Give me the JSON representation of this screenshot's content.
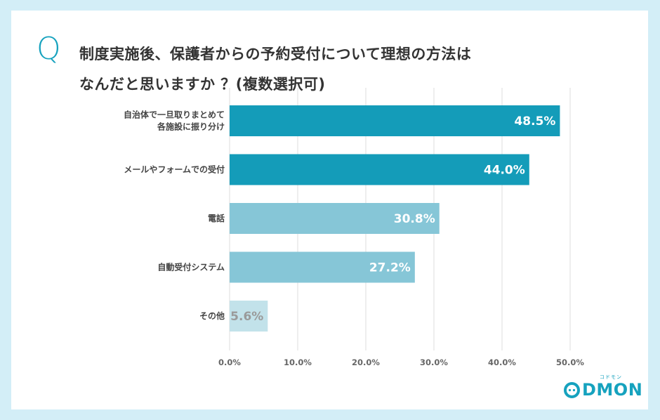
{
  "question": {
    "mark": "Q",
    "line1": "制度実施後、保護者からの予約受付について理想の方法は",
    "line2": "なんだと思いますか ？(複数選択可)"
  },
  "logo": {
    "text": "DMON",
    "sub": "コドモン"
  },
  "colors": {
    "background": "#d3eef7",
    "card": "#ffffff",
    "accent": "#16a2be",
    "bar_dark": "#149cb9",
    "bar_medium": "#86c6d7",
    "bar_light": "#c2e2ea",
    "grid": "#dddddd"
  },
  "chart_data": {
    "type": "bar",
    "orientation": "horizontal",
    "categories": [
      [
        "自治体で一旦取りまとめて",
        "各施設に振り分け"
      ],
      [
        "メールやフォームでの受付"
      ],
      [
        "電話"
      ],
      [
        "自動受付システム"
      ],
      [
        "その他"
      ]
    ],
    "values": [
      48.5,
      44.0,
      30.8,
      27.2,
      5.6
    ],
    "value_labels": [
      "48.5%",
      "44.0%",
      "30.8%",
      "27.2%",
      "5.6%"
    ],
    "bar_colors": [
      "#149cb9",
      "#149cb9",
      "#86c6d7",
      "#86c6d7",
      "#c2e2ea"
    ],
    "label_colors": [
      "#ffffff",
      "#ffffff",
      "#ffffff",
      "#ffffff",
      "#9a9a9a"
    ],
    "xlim": [
      0,
      50
    ],
    "xticks": [
      0,
      10,
      20,
      30,
      40,
      50
    ],
    "xtick_labels": [
      "0.0%",
      "10.0%",
      "20.0%",
      "30.0%",
      "40.0%",
      "50.0%"
    ],
    "grid": true
  }
}
